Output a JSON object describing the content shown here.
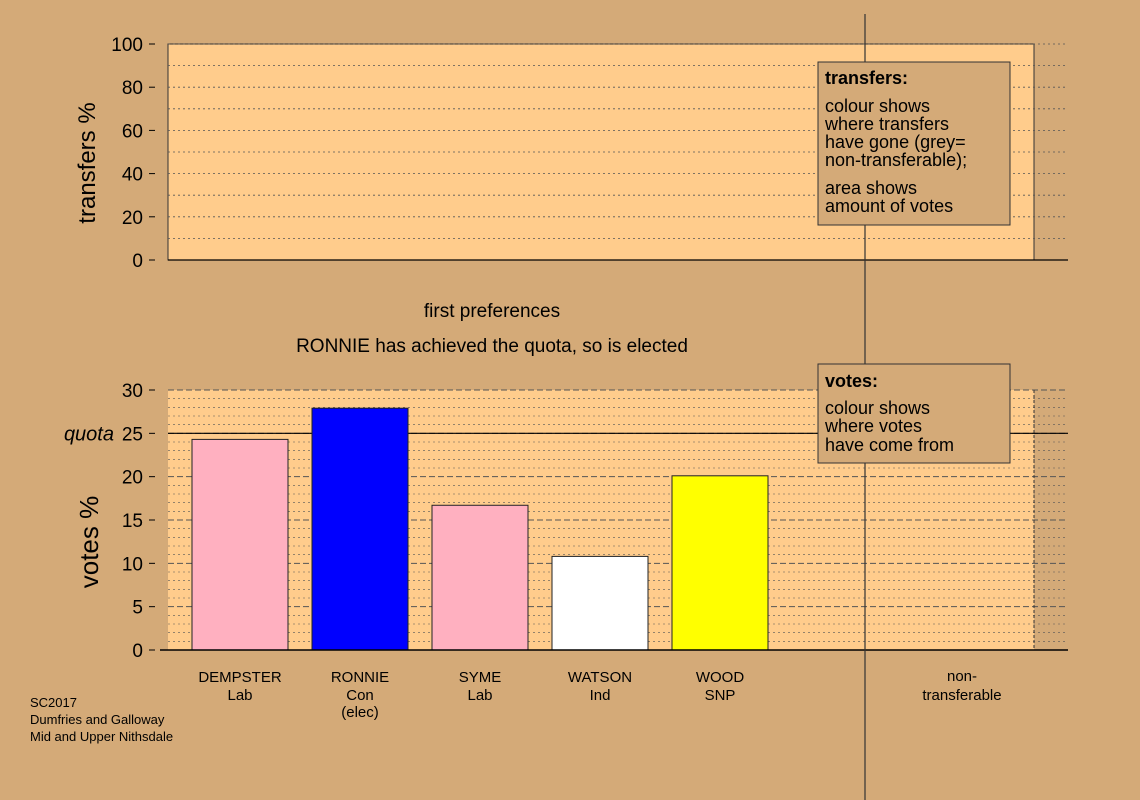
{
  "colors": {
    "background": "#d4aa78",
    "plot_area": "#ffcc8c",
    "legend_box": "#d4aa78"
  },
  "chart_data": [
    {
      "type": "bar",
      "panel": "transfers",
      "ylabel": "transfers %",
      "ylim": [
        0,
        100
      ],
      "y_ticks": [
        0,
        20,
        40,
        60,
        80,
        100
      ],
      "grid": true,
      "values": [],
      "legend": {
        "placement": "top-right",
        "title": "transfers:",
        "lines": [
          "colour shows",
          "where transfers",
          "have gone (grey=",
          "non-transferable);",
          "area shows",
          "amount of votes"
        ]
      }
    },
    {
      "type": "bar",
      "panel": "votes",
      "title": "first preferences",
      "subtitle": "RONNIE has achieved the quota, so is elected",
      "ylabel": "votes %",
      "ylim": [
        0,
        30
      ],
      "y_ticks": [
        0,
        5,
        10,
        15,
        20,
        25,
        30
      ],
      "grid": true,
      "quota": {
        "label": "quota",
        "value": 25
      },
      "categories": [
        {
          "name": "DEMPSTER",
          "party": "Lab",
          "note": "",
          "value": 24.3,
          "color": "#ffb0c0"
        },
        {
          "name": "RONNIE",
          "party": "Con",
          "note": "(elec)",
          "value": 27.9,
          "color": "#0000ff"
        },
        {
          "name": "SYME",
          "party": "Lab",
          "note": "",
          "value": 16.7,
          "color": "#ffb0c0"
        },
        {
          "name": "WATSON",
          "party": "Ind",
          "note": "",
          "value": 10.8,
          "color": "#ffffff"
        },
        {
          "name": "WOOD",
          "party": "SNP",
          "note": "",
          "value": 20.1,
          "color": "#ffff00"
        }
      ],
      "non_transferable": {
        "line1": "non-",
        "line2": "transferable"
      },
      "legend": {
        "placement": "top-right",
        "title": "votes:",
        "lines": [
          "colour shows",
          "where votes",
          "have come from"
        ]
      }
    }
  ],
  "footer": {
    "lines": [
      "SC2017",
      "Dumfries and Galloway",
      "Mid and Upper Nithsdale"
    ]
  }
}
